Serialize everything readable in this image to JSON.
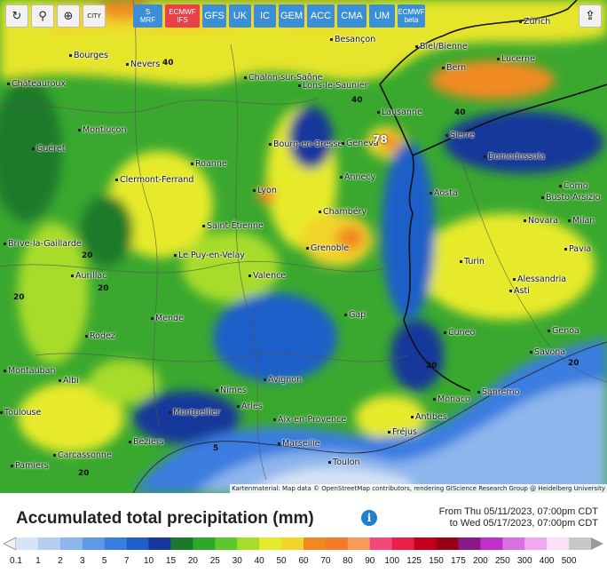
{
  "toolbar": {
    "tools": [
      {
        "name": "refresh-icon",
        "glyph": "↻"
      },
      {
        "name": "location-pin-icon",
        "glyph": "⚲"
      },
      {
        "name": "zoom-icon",
        "glyph": "⊕"
      }
    ],
    "city_toggle_label": "CITY",
    "models": [
      {
        "label": "S",
        "sub": "MRF",
        "color": "#3b8fd6"
      },
      {
        "label": "ECMWF",
        "sub": "IFS",
        "color": "#e8414a"
      },
      {
        "label": "GFS",
        "sub": "",
        "color": "#3b8fd6"
      },
      {
        "label": "UK",
        "sub": "",
        "color": "#3b8fd6"
      },
      {
        "label": "IC",
        "sub": "",
        "color": "#3b8fd6"
      },
      {
        "label": "GEM",
        "sub": "",
        "color": "#3b8fd6"
      },
      {
        "label": "ACC",
        "sub": "",
        "color": "#3b8fd6"
      },
      {
        "label": "CMA",
        "sub": "",
        "color": "#3b8fd6"
      },
      {
        "label": "UM",
        "sub": "",
        "color": "#3b8fd6"
      },
      {
        "label": "ECMWF",
        "sub": "beta",
        "color": "#3b8fd6"
      }
    ]
  },
  "map": {
    "cities": [
      "Bourges",
      "Nevers",
      "Besançon",
      "Biel/Bienne",
      "Zürich",
      "Bern",
      "Lucerne",
      "Châteauroux",
      "Chalon-sur-Saône",
      "Lons-le-Saunier",
      "Lausanne",
      "Montluçon",
      "Bourg-en-Bresse",
      "Geneva",
      "Sierre",
      "Guéret",
      "Roanne",
      "Annecy",
      "Domodossola",
      "Clermont-Ferrand",
      "Lyon",
      "Aosta",
      "Busto Arsizio",
      "Como",
      "Chambéry",
      "Novara",
      "Milan",
      "Saint-Étienne",
      "Brive-la-Gaillarde",
      "Grenoble",
      "Pavia",
      "Le Puy-en-Velay",
      "Turin",
      "Aurillac",
      "Valence",
      "Alessandria",
      "Asti",
      "Mende",
      "Gap",
      "Rodez",
      "Cuneo",
      "Genoa",
      "Savona",
      "Albi",
      "Avignon",
      "Nîmes",
      "Arles",
      "Monaco",
      "Sanremo",
      "Montpellier",
      "Aix-en-Provence",
      "Antibes",
      "Fréjus",
      "Béziers",
      "Marseille",
      "Carcassonne",
      "Toulon",
      "Pamiers",
      "Toulouse",
      "Montauban"
    ],
    "contour_labels": [
      "40",
      "40",
      "40",
      "20",
      "20",
      "20",
      "20",
      "20",
      "20",
      "5"
    ],
    "max_value": "78",
    "attribution": "Kartenmaterial: Map data © OpenStreetMap contributors, rendering GIScience Research Group @ Heidelberg University"
  },
  "legend": {
    "title": "Accumulated total precipitation (mm)",
    "from": "From Thu 05/11/2023, 07:00pm CDT",
    "to": "to Wed 05/17/2023, 07:00pm CDT",
    "values": [
      "0.1",
      "1",
      "2",
      "3",
      "5",
      "7",
      "10",
      "15",
      "20",
      "25",
      "30",
      "40",
      "50",
      "60",
      "70",
      "80",
      "90",
      "100",
      "125",
      "150",
      "175",
      "200",
      "250",
      "300",
      "400",
      "500"
    ],
    "colors": [
      "#d6e2f5",
      "#b5cdf0",
      "#8db6ec",
      "#5f99e6",
      "#3a7de0",
      "#1e5fc9",
      "#13389a",
      "#1a7a2a",
      "#2ea82b",
      "#5cc82a",
      "#a8dc2c",
      "#e6ea2c",
      "#f2d42a",
      "#f08a20",
      "#f57a2a",
      "#f79a5a",
      "#f2487a",
      "#e8204a",
      "#c2001c",
      "#9a0014",
      "#8a1a8a",
      "#c030c8",
      "#d870e0",
      "#f0a8f0",
      "#fbe0fb",
      "#c8c8c8"
    ]
  }
}
